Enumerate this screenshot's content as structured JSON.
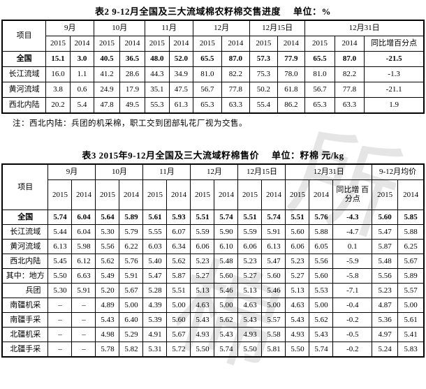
{
  "table2": {
    "title": "表2 9-12月全国及三大流域棉农籽棉交售进度",
    "unit": "单位：%",
    "col_item": "项目",
    "groups": [
      {
        "label": "9月",
        "cols": [
          "2015",
          "2014"
        ]
      },
      {
        "label": "10月",
        "cols": [
          "2015",
          "2014"
        ]
      },
      {
        "label": "11月",
        "cols": [
          "2015",
          "2014"
        ]
      },
      {
        "label": "12月",
        "cols": [
          "2015",
          "2014"
        ]
      },
      {
        "label": "12月15日",
        "cols": [
          "2015",
          "2014"
        ]
      },
      {
        "label": "12月31日",
        "cols": [
          "2015",
          "2014",
          "同比增百分点"
        ]
      }
    ],
    "rows": [
      {
        "label": "全国",
        "values": [
          "15.1",
          "3.0",
          "40.5",
          "36.5",
          "48.0",
          "52.0",
          "65.5",
          "87.0",
          "57.3",
          "77.9",
          "65.5",
          "87.0",
          "-21.5"
        ]
      },
      {
        "label": "长江流域",
        "values": [
          "16.0",
          "1.1",
          "41.2",
          "28.6",
          "44.3",
          "34.9",
          "81.0",
          "82.2",
          "75.3",
          "78.0",
          "81.0",
          "82.2",
          "-1.3"
        ]
      },
      {
        "label": "黄河流域",
        "values": [
          "3.8",
          "0.6",
          "24.9",
          "17.9",
          "35.1",
          "47.5",
          "56.7",
          "77.8",
          "50.2",
          "61.8",
          "56.7",
          "77.8",
          "-21.1"
        ]
      },
      {
        "label": "西北内陆",
        "values": [
          "20.2",
          "5.4",
          "47.8",
          "49.5",
          "55.3",
          "61.3",
          "65.3",
          "63.3",
          "55.4",
          "86.2",
          "65.3",
          "63.3",
          "1.9"
        ]
      }
    ],
    "note": "注：西北内陆：兵团的机采棉，职工交到团部轧花厂视为交售。"
  },
  "table3": {
    "title": "表3 2015年9-12月全国及三大流域籽棉售价",
    "unit": "单位：籽棉 元/kg",
    "col_item": "项目",
    "groups": [
      {
        "label": "9月",
        "cols": [
          "2015",
          "2014"
        ]
      },
      {
        "label": "10月",
        "cols": [
          "2015",
          "2014"
        ]
      },
      {
        "label": "11月",
        "cols": [
          "2015",
          "2014"
        ]
      },
      {
        "label": "12月",
        "cols": [
          "2015",
          "2014"
        ]
      },
      {
        "label": "12月15日",
        "cols": [
          "2015",
          "2014"
        ]
      },
      {
        "label": "12月31日",
        "cols": [
          "2015",
          "2014",
          "同比增 百分点"
        ]
      },
      {
        "label": "9-12月均价",
        "cols": [
          "2015",
          "2014"
        ]
      }
    ],
    "rows": [
      {
        "label": "全国",
        "values": [
          "5.74",
          "6.04",
          "5.64",
          "5.89",
          "5.61",
          "5.93",
          "5.51",
          "5.74",
          "5.51",
          "5.74",
          "5.51",
          "5.76",
          "-4.3",
          "5.60",
          "5.85"
        ]
      },
      {
        "label": "长江流域",
        "values": [
          "5.44",
          "6.04",
          "5.30",
          "5.79",
          "5.55",
          "6.07",
          "5.59",
          "5.90",
          "5.59",
          "5.91",
          "5.60",
          "5.88",
          "-4.7",
          "5.47",
          "5.88"
        ]
      },
      {
        "label": "黄河流域",
        "values": [
          "6.13",
          "5.98",
          "5.56",
          "6.22",
          "6.03",
          "6.34",
          "6.06",
          "6.10",
          "6.06",
          "6.13",
          "6.06",
          "6.05",
          "0.1",
          "5.87",
          "6.25"
        ]
      },
      {
        "label": "西北内陆",
        "values": [
          "5.45",
          "6.12",
          "5.62",
          "5.76",
          "5.40",
          "5.62",
          "5.23",
          "5.48",
          "5.23",
          "5.47",
          "5.23",
          "5.56",
          "-5.9",
          "5.48",
          "5.67"
        ]
      },
      {
        "label": "其中：地方",
        "values": [
          "5.50",
          "6.63",
          "5.49",
          "5.91",
          "5.47",
          "5.87",
          "5.27",
          "5.60",
          "5.27",
          "5.60",
          "5.27",
          "5.60",
          "-5.8",
          "5.56",
          "5.89"
        ]
      },
      {
        "label": "兵团",
        "indent": true,
        "values": [
          "5.30",
          "5.91",
          "5.20",
          "5.67",
          "5.28",
          "5.51",
          "5.13",
          "5.46",
          "5.13",
          "5.46",
          "5.13",
          "5.53",
          "-7.1",
          "5.23",
          "5.57"
        ]
      },
      {
        "label": "南疆机采",
        "values": [
          "–",
          "–",
          "4.89",
          "5.00",
          "4.39",
          "5.00",
          "4.63",
          "5.00",
          "4.63",
          "5.00",
          "4.63",
          "5.00",
          "-0.4",
          "4.87",
          "5.00"
        ]
      },
      {
        "label": "南疆手采",
        "values": [
          "–",
          "–",
          "5.43",
          "6.40",
          "5.39",
          "5.60",
          "5.43",
          "5.62",
          "5.43",
          "5.57",
          "5.43",
          "5.62",
          "-0.2",
          "5.36",
          "5.61"
        ]
      },
      {
        "label": "北疆机采",
        "values": [
          "–",
          "–",
          "4.98",
          "5.29",
          "4.91",
          "5.67",
          "4.93",
          "5.43",
          "4.93",
          "5.58",
          "4.93",
          "5.43",
          "-0.5",
          "4.97",
          "5.41"
        ]
      },
      {
        "label": "北疆手采",
        "values": [
          "–",
          "–",
          "5.78",
          "5.82",
          "5.31",
          "5.72",
          "5.50",
          "5.74",
          "5.50",
          "5.81",
          "5.50",
          "5.74",
          "-0.2",
          "5.24",
          "5.83"
        ]
      }
    ]
  },
  "watermark": [
    "所",
    "棉"
  ]
}
